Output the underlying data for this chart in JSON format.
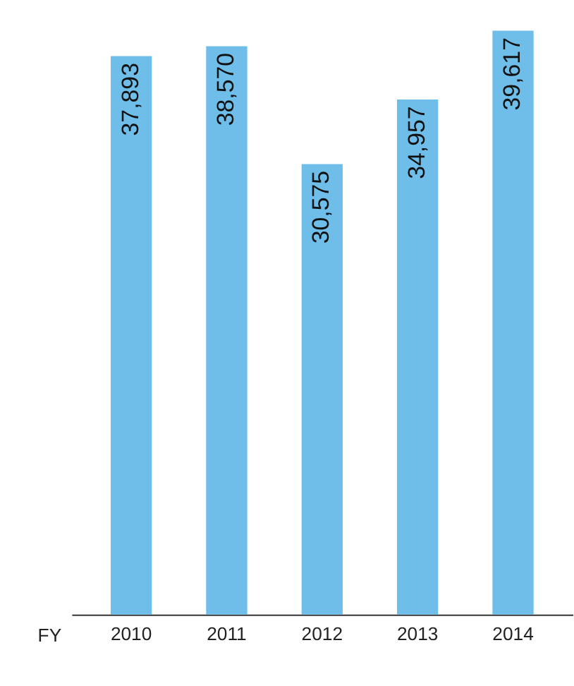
{
  "chart_data": {
    "type": "bar",
    "xlabel": "FY",
    "categories": [
      "2010",
      "2011",
      "2012",
      "2013",
      "2014"
    ],
    "values": [
      37893,
      38570,
      30575,
      34957,
      39617
    ],
    "value_labels": [
      "37,893",
      "38,570",
      "30,575",
      "34,957",
      "39,617"
    ],
    "color": "#6fbde9",
    "grid": false
  }
}
